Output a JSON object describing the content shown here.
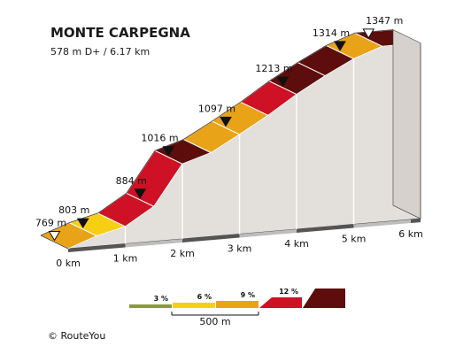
{
  "chart_data": {
    "type": "area",
    "title": "MONTE CARPEGNA",
    "subtitle": "578 m D+ / 6.17 km",
    "x_unit": "km",
    "x_ticks": [
      "0 km",
      "1 km",
      "2 km",
      "3 km",
      "4 km",
      "5 km",
      "6 km"
    ],
    "x_tick_values": [
      0,
      1,
      2,
      3,
      4,
      5,
      6
    ],
    "profile_points": [
      {
        "km": 0.0,
        "elev": 769
      },
      {
        "km": 0.5,
        "elev": 803
      },
      {
        "km": 1.0,
        "elev": 826
      },
      {
        "km": 1.5,
        "elev": 884
      },
      {
        "km": 2.0,
        "elev": 1016
      },
      {
        "km": 2.5,
        "elev": 1045
      },
      {
        "km": 3.0,
        "elev": 1097
      },
      {
        "km": 3.5,
        "elev": 1152
      },
      {
        "km": 4.0,
        "elev": 1213
      },
      {
        "km": 4.5,
        "elev": 1266
      },
      {
        "km": 5.0,
        "elev": 1314
      },
      {
        "km": 5.5,
        "elev": 1347
      }
    ],
    "segment_colors": [
      "#E9A318",
      "#F7CF12",
      "#CE1124",
      "#CE1124",
      "#5C0D0C",
      "#E9A318",
      "#E9A318",
      "#CE1124",
      "#5C0D0C",
      "#5C0D0C",
      "#E9A318",
      "#5C0D0C"
    ],
    "elevation_labels": [
      "769 m",
      "803 m",
      "884 m",
      "1016 m",
      "1097 m",
      "1213 m",
      "1314 m",
      "1347 m"
    ],
    "legend": {
      "items": [
        {
          "label": "3 %",
          "color": "#8A9A3A"
        },
        {
          "label": "6 %",
          "color": "#F7CF12"
        },
        {
          "label": "9 %",
          "color": "#E9A318"
        },
        {
          "label": "12 %",
          "color": "#CE1124"
        },
        {
          "label": "",
          "color": "#5C0D0C"
        }
      ],
      "scale_label": "500 m"
    }
  },
  "footer": {
    "copyright": "© RouteYou"
  }
}
